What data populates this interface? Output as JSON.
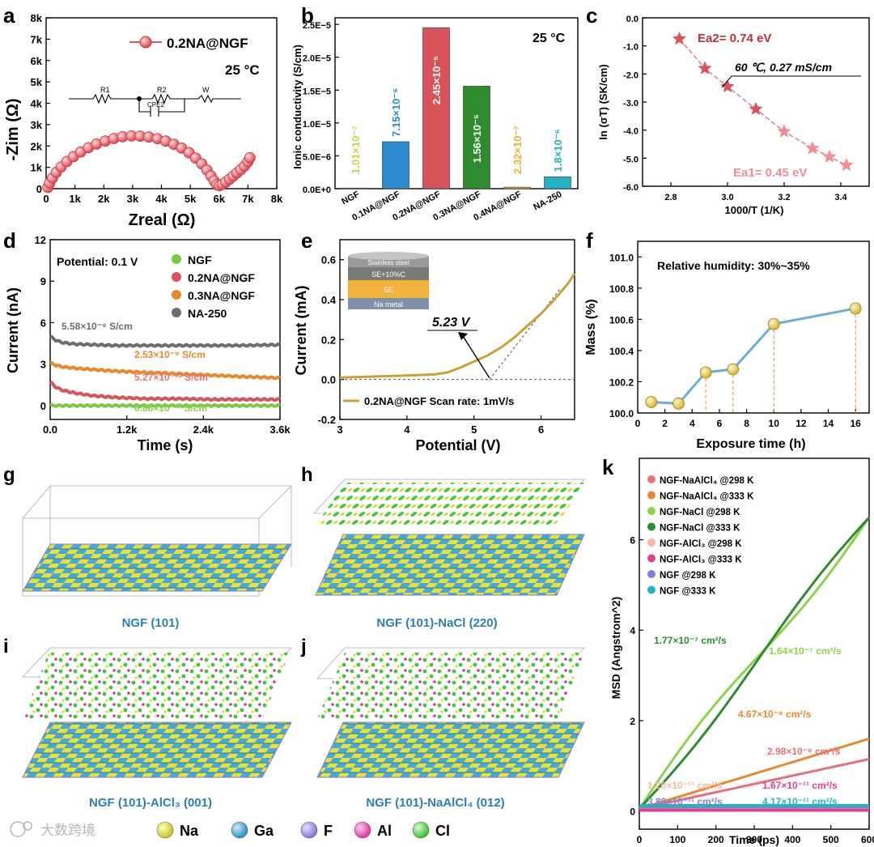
{
  "colors": {
    "red": "#d9535a",
    "blue": "#2e8bd0",
    "green": "#7ac943",
    "dkgreen": "#2e8b2e",
    "orange": "#e8892e",
    "gold": "#c8a234",
    "gray": "#6e6e6e",
    "teal": "#22b2c2",
    "lime": "#8bd34a",
    "pink": "#e89a9a",
    "violet": "#7f7fd9",
    "magenta": "#e23e8f"
  },
  "panels": {
    "a": {
      "letter": "a",
      "xlabel": "Zreal (Ω)",
      "ylabel": "-Zim (Ω)",
      "legend": "0.2NA@NGF",
      "temp": "25 °C",
      "xticks": [
        "0",
        "1k",
        "2k",
        "3k",
        "4k",
        "5k",
        "6k",
        "7k",
        "8k"
      ],
      "yticks": [
        "0",
        "1k",
        "2k",
        "3k",
        "4k",
        "5k",
        "6k",
        "7k",
        "8k"
      ],
      "circuit": {
        "r1": "R1",
        "r2": "R2",
        "w": "W",
        "cpe": "CPE2"
      }
    },
    "b": {
      "letter": "b",
      "ylabel": "Ionic conductivity (S/cm)",
      "temp": "25 °C",
      "yticks": [
        "0.0E+0",
        "5.0E−6",
        "1.0E−5",
        "1.5E−5",
        "2.0E−5",
        "2.5E−5"
      ]
    },
    "c": {
      "letter": "c",
      "xlabel": "1000/T (1/K)",
      "ylabel": "ln (σT) (SK/cm)",
      "xticks": [
        "2.8",
        "3.0",
        "3.2",
        "3.4"
      ],
      "yticks": [
        "0.0",
        "-1.0",
        "-2.0",
        "-3.0",
        "-4.0",
        "-5.0",
        "-6.0"
      ],
      "ea2": "Ea2= 0.74 eV",
      "ea1": "Ea1= 0.45 eV",
      "annotation": "60 ℃, 0.27 mS/cm"
    },
    "d": {
      "letter": "d",
      "xlabel": "Time (s)",
      "ylabel": "Current (nA)",
      "potential": "Potential: 0.1 V",
      "xticks": [
        "0.0",
        "1.2k",
        "2.4k",
        "3.6k"
      ],
      "yticks": [
        "0",
        "3",
        "6",
        "9",
        "12"
      ],
      "legend": [
        "NGF",
        "0.2NA@NGF",
        "0.3NA@NGF",
        "NA-250"
      ],
      "labels": [
        "5.58×10⁻⁹ S/cm",
        "2.53×10⁻⁹ S/cm",
        "5.27×10⁻¹⁰ S/cm",
        "6.88×10⁻¹² S/cm"
      ]
    },
    "e": {
      "letter": "e",
      "xlabel": "Potential (V)",
      "ylabel": "Current (mA)",
      "legend": "0.2NA@NGF Scan rate: 1mV/s",
      "voltage": "5.23 V",
      "xticks": [
        "3",
        "4",
        "5",
        "6"
      ],
      "yticks": [
        "-0.2",
        "0.0",
        "0.2",
        "0.4",
        "0.6"
      ],
      "stack": [
        "Stainless steel",
        "SE+10%C",
        "SE",
        "Na metal"
      ]
    },
    "f": {
      "letter": "f",
      "xlabel": "Exposure time (h)",
      "ylabel": "Mass (%)",
      "humidity": "Relative humidity: 30%~35%",
      "xticks": [
        "0",
        "2",
        "4",
        "6",
        "8",
        "10",
        "12",
        "14",
        "16"
      ],
      "yticks": [
        "100.0",
        "100.2",
        "100.4",
        "100.6",
        "100.8",
        "101.0"
      ]
    },
    "k": {
      "letter": "k",
      "xlabel": "Time (ps)",
      "ylabel": "MSD (Angstrom^2)",
      "xticks": [
        "0",
        "100",
        "200",
        "300",
        "400",
        "500",
        "600"
      ],
      "yticks": [
        "0",
        "2",
        "4",
        "6"
      ],
      "legend": [
        "NGF-NaAlCl₄ @298 K",
        "NGF-NaAlCl₄ @333 K",
        "NGF-NaCl @298 K",
        "NGF-NaCl @333 K",
        "NGF-AlCl₃ @298 K",
        "NGF-AlCl₃ @333 K",
        "NGF @298 K",
        "NGF @333 K"
      ],
      "labels": [
        "1.77×10⁻⁷ cm²/s",
        "1.64×10⁻⁷ cm²/s",
        "4.67×10⁻⁸ cm²/s",
        "2.98×10⁻⁸ cm²/s",
        "1.20×10⁻¹¹ cm²/s",
        "1.67×10⁻¹¹ cm²/s",
        "3.86×10⁻¹¹ cm²/s",
        "4.17×10⁻¹¹ cm²/s"
      ]
    },
    "structs": [
      {
        "letter": "g",
        "caption": "NGF (101)"
      },
      {
        "letter": "h",
        "caption": "NGF (101)-NaCl (220)"
      },
      {
        "letter": "i",
        "caption": "NGF (101)-AlCl₃ (001)"
      },
      {
        "letter": "j",
        "caption": "NGF (101)-NaAlCl₄ (012)"
      }
    ],
    "atoms": [
      "Na",
      "Ga",
      "F",
      "Al",
      "Cl"
    ],
    "watermark": "大数跨境"
  },
  "chart_data": [
    {
      "panel": "a",
      "type": "scatter",
      "title": "",
      "xlabel": "Zreal (Ω)",
      "ylabel": "-Zim (Ω)",
      "xlim": [
        0,
        8000
      ],
      "ylim": [
        0,
        8000
      ],
      "series": [
        {
          "name": "0.2NA@NGF",
          "x": [
            60,
            120,
            220,
            350,
            520,
            720,
            950,
            1200,
            1470,
            1750,
            2050,
            2350,
            2650,
            2960,
            3260,
            3560,
            3860,
            4150,
            4430,
            4700,
            4960,
            5190,
            5400,
            5580,
            5720,
            5830,
            5920,
            6010,
            6110,
            6230,
            6360,
            6490,
            6620,
            6750,
            6880,
            7000,
            7070
          ],
          "y": [
            60,
            260,
            500,
            760,
            1020,
            1270,
            1500,
            1720,
            1920,
            2090,
            2230,
            2350,
            2430,
            2470,
            2460,
            2420,
            2340,
            2230,
            2080,
            1900,
            1680,
            1430,
            1160,
            870,
            590,
            360,
            190,
            140,
            200,
            310,
            440,
            590,
            740,
            890,
            1060,
            1260,
            1450
          ]
        }
      ]
    },
    {
      "panel": "b",
      "type": "bar",
      "title": "",
      "ylabel": "Ionic conductivity (S/cm)",
      "ylim": [
        0,
        2.6e-05
      ],
      "categories": [
        "NGF",
        "0.1NA@NGF",
        "0.2NA@NGF",
        "0.3NA@NGF",
        "0.4NA@NGF",
        "NA-250"
      ],
      "values": [
        1.01e-07,
        7.15e-06,
        2.45e-05,
        1.56e-05,
        2.32e-07,
        1.8e-06
      ],
      "value_labels": [
        "1.01×10⁻⁷",
        "7.15×10⁻⁶",
        "2.45×10⁻⁵",
        "1.56×10⁻⁵",
        "2.32×10⁻⁷",
        "1.8×10⁻⁶"
      ],
      "colors": [
        "#c9d24a",
        "#2e8bd0",
        "#d9535a",
        "#2e8b2e",
        "#e8b02e",
        "#22b2c2"
      ]
    },
    {
      "panel": "c",
      "type": "scatter",
      "title": "",
      "xlabel": "1000/T (1/K)",
      "ylabel": "ln (σT) (SK/cm)",
      "xlim": [
        2.7,
        3.5
      ],
      "ylim": [
        -6,
        0
      ],
      "x": [
        2.83,
        2.92,
        3.0,
        3.1,
        3.2,
        3.3,
        3.36,
        3.42
      ],
      "y": [
        -0.75,
        -1.8,
        -2.45,
        -3.25,
        -4.05,
        -4.65,
        -4.95,
        -5.25
      ]
    },
    {
      "panel": "d",
      "type": "line",
      "title": "",
      "xlabel": "Time (s)",
      "ylabel": "Current (nA)",
      "xlim": [
        0,
        3600
      ],
      "ylim": [
        -1,
        12
      ],
      "x": [
        0,
        100,
        200,
        400,
        700,
        1000,
        1500,
        2000,
        2500,
        3000,
        3600
      ],
      "series": [
        {
          "name": "NA-250",
          "values": [
            5.0,
            4.7,
            4.55,
            4.45,
            4.4,
            4.35,
            4.35,
            4.35,
            4.35,
            4.35,
            4.4
          ]
        },
        {
          "name": "0.3NA@NGF",
          "values": [
            3.1,
            2.9,
            2.8,
            2.7,
            2.6,
            2.5,
            2.4,
            2.3,
            2.2,
            2.1,
            2.0
          ]
        },
        {
          "name": "0.2NA@NGF",
          "values": [
            1.7,
            1.3,
            1.1,
            0.9,
            0.7,
            0.6,
            0.5,
            0.5,
            0.45,
            0.45,
            0.45
          ]
        },
        {
          "name": "NGF",
          "values": [
            0.0,
            0.0,
            0.0,
            0.0,
            0.0,
            0.0,
            0.0,
            0.0,
            0.0,
            0.0,
            0.0
          ]
        }
      ]
    },
    {
      "panel": "e",
      "type": "line",
      "title": "",
      "xlabel": "Potential (V)",
      "ylabel": "Current (mA)",
      "xlim": [
        3,
        6.5
      ],
      "ylim": [
        -0.2,
        0.7
      ],
      "x": [
        3.0,
        3.5,
        4.0,
        4.4,
        4.6,
        4.8,
        5.0,
        5.2,
        5.4,
        5.6,
        5.8,
        6.0,
        6.2,
        6.4,
        6.5
      ],
      "series": [
        {
          "name": "0.2NA@NGF",
          "values": [
            0.01,
            0.015,
            0.02,
            0.025,
            0.035,
            0.06,
            0.09,
            0.12,
            0.16,
            0.21,
            0.27,
            0.33,
            0.4,
            0.48,
            0.53
          ]
        }
      ]
    },
    {
      "panel": "f",
      "type": "line",
      "title": "",
      "xlabel": "Exposure time (h)",
      "ylabel": "Mass (%)",
      "xlim": [
        0,
        17
      ],
      "ylim": [
        100.0,
        101.1
      ],
      "x": [
        1,
        3,
        5,
        7,
        10,
        16
      ],
      "series": [
        {
          "name": "",
          "values": [
            100.07,
            100.06,
            100.26,
            100.28,
            100.57,
            100.67
          ]
        }
      ]
    },
    {
      "panel": "k",
      "type": "line",
      "title": "",
      "xlabel": "Time (ps)",
      "ylabel": "MSD (Angstrom^2)",
      "xlim": [
        0,
        600
      ],
      "ylim": [
        -0.4,
        7.8
      ],
      "x": [
        0,
        600
      ],
      "series": [
        {
          "name": "NGF-NaAlCl₄ @298 K",
          "values": [
            0.05,
            1.15
          ]
        },
        {
          "name": "NGF-NaAlCl₄ @333 K",
          "values": [
            0.05,
            1.6
          ]
        },
        {
          "name": "NGF-NaCl @298 K",
          "values": [
            0.05,
            6.55
          ]
        },
        {
          "name": "NGF-NaCl @333 K",
          "values": [
            0.05,
            6.45
          ]
        },
        {
          "name": "NGF-AlCl₃ @298 K",
          "values": [
            0.03,
            0.03
          ]
        },
        {
          "name": "NGF-AlCl₃ @333 K",
          "values": [
            0.02,
            0.02
          ]
        },
        {
          "name": "NGF @298 K",
          "values": [
            0.1,
            0.1
          ]
        },
        {
          "name": "NGF @333 K",
          "values": [
            0.12,
            0.12
          ]
        }
      ]
    }
  ]
}
